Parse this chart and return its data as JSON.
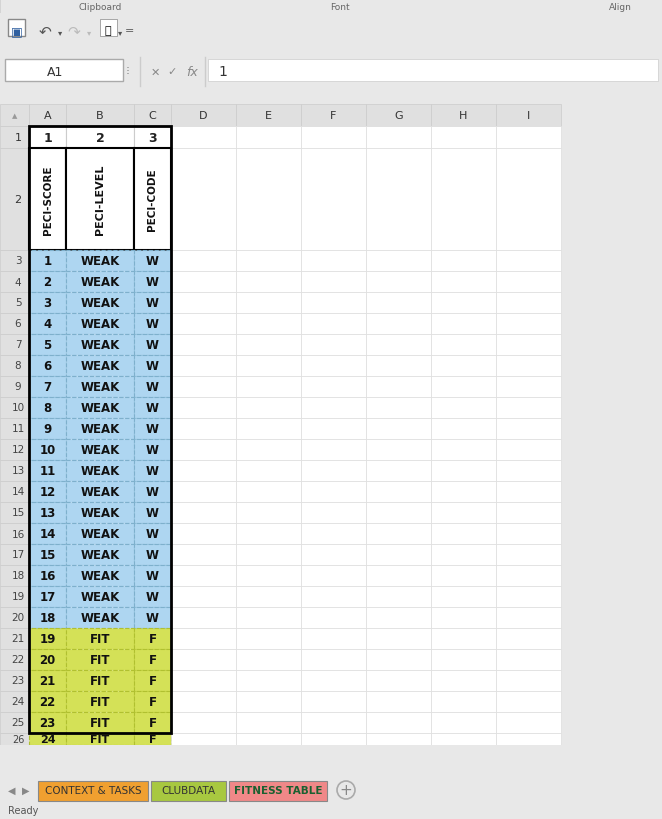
{
  "bg_color": "#e8e8e8",
  "white": "#ffffff",
  "grid_header_color": "#e0e0e0",
  "weak_color": "#aed6f1",
  "fit_color": "#d4e157",
  "cell_border_weak": "#7eb0cc",
  "cell_border_fit": "#b0c030",
  "outer_border_color": "#000000",
  "scores": [
    1,
    2,
    3,
    4,
    5,
    6,
    7,
    8,
    9,
    10,
    11,
    12,
    13,
    14,
    15,
    16,
    17,
    18,
    19,
    20,
    21,
    22,
    23
  ],
  "levels": [
    "WEAK",
    "WEAK",
    "WEAK",
    "WEAK",
    "WEAK",
    "WEAK",
    "WEAK",
    "WEAK",
    "WEAK",
    "WEAK",
    "WEAK",
    "WEAK",
    "WEAK",
    "WEAK",
    "WEAK",
    "WEAK",
    "WEAK",
    "WEAK",
    "FIT",
    "FIT",
    "FIT",
    "FIT",
    "FIT"
  ],
  "codes": [
    "W",
    "W",
    "W",
    "W",
    "W",
    "W",
    "W",
    "W",
    "W",
    "W",
    "W",
    "W",
    "W",
    "W",
    "W",
    "W",
    "W",
    "W",
    "F",
    "F",
    "F",
    "F",
    "F"
  ],
  "tab_context_color": "#f0a030",
  "tab_clubdata_color": "#a8c840",
  "tab_fitness_color": "#f08888",
  "tab_fitness_text_color": "#1a6030",
  "score_26": 24,
  "level_26": "FIT",
  "code_26": "F",
  "col_letters": [
    "A",
    "B",
    "C",
    "D",
    "E",
    "F",
    "G",
    "H",
    "I"
  ],
  "peci_score_label": "PECI-SCORE",
  "peci_level_label": "PECI-LEVEL",
  "peci_code_label": "PECI-CODE",
  "tab_labels": [
    "CONTEXT & TASKS",
    "CLUBDATA",
    "FITNESS TABLE"
  ]
}
